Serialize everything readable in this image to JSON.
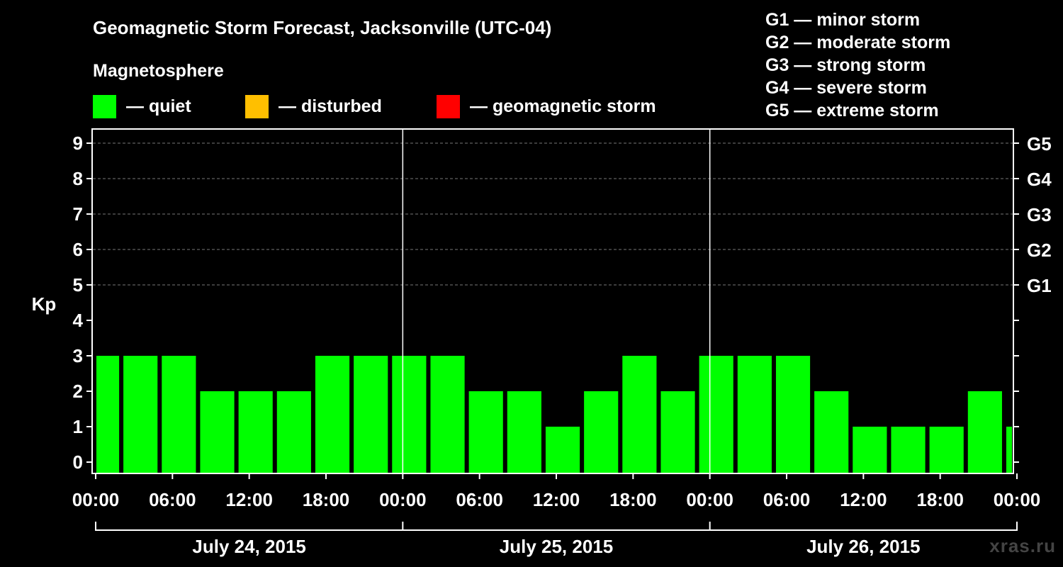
{
  "chart_data": {
    "type": "bar",
    "title": "Geomagnetic Storm Forecast, Jacksonville (UTC-04)",
    "subtitle": "Magnetosphere",
    "ylabel": "Kp",
    "ylim": [
      0,
      9
    ],
    "yticks": [
      "0",
      "1",
      "2",
      "3",
      "4",
      "5",
      "6",
      "7",
      "8",
      "9"
    ],
    "right_ticks": [
      {
        "kp": 5,
        "label": "G1"
      },
      {
        "kp": 6,
        "label": "G2"
      },
      {
        "kp": 7,
        "label": "G3"
      },
      {
        "kp": 8,
        "label": "G4"
      },
      {
        "kp": 9,
        "label": "G5"
      }
    ],
    "xtick_labels": [
      "00:00",
      "06:00",
      "12:00",
      "18:00",
      "00:00",
      "06:00",
      "12:00",
      "18:00",
      "00:00",
      "06:00",
      "12:00",
      "18:00",
      "00:00"
    ],
    "days": [
      "July 24, 2015",
      "July 25, 2015",
      "July 26, 2015"
    ],
    "bar_start_hour": -1,
    "bar_interval_hours": 3,
    "values": [
      3,
      3,
      3,
      2,
      2,
      2,
      3,
      3,
      3,
      3,
      2,
      2,
      1,
      2,
      3,
      2,
      3,
      3,
      3,
      2,
      1,
      1,
      1,
      2,
      1
    ],
    "grid": true,
    "legend": [
      {
        "label": "— quiet",
        "color": "#00ff00"
      },
      {
        "label": "— disturbed",
        "color": "#ffbf00"
      },
      {
        "label": "— geomagnetic storm",
        "color": "#ff0000"
      }
    ],
    "storm_scale": [
      "G1 — minor storm",
      "G2 — moderate storm",
      "G3 — strong storm",
      "G4 — severe storm",
      "G5 — extreme storm"
    ]
  },
  "credit": "xras.ru"
}
